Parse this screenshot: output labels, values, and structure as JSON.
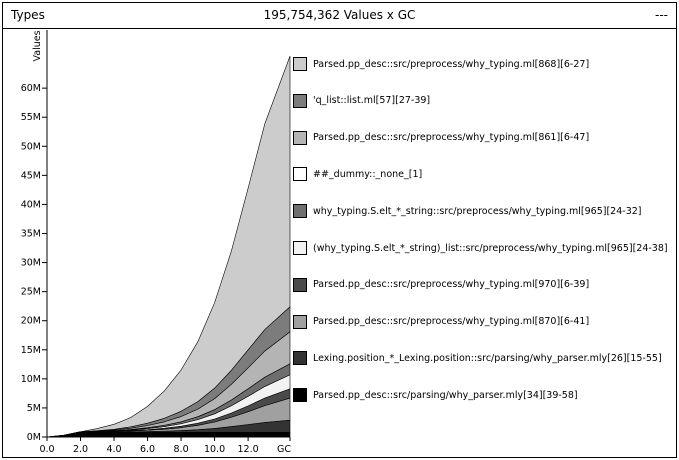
{
  "header": {
    "left": "Types",
    "center": "195,754,362 Values x GC",
    "right": "---"
  },
  "chart_data": {
    "type": "area",
    "stacked": true,
    "xlabel": "GC",
    "ylabel": "Values",
    "xlim": [
      0,
      14.5
    ],
    "ylim": [
      0,
      70000000
    ],
    "x_ticks": [
      "0.0",
      "2.0",
      "4.0",
      "6.0",
      "8.0",
      "10.0",
      "12.0",
      "GC"
    ],
    "y_ticks": [
      "0M",
      "5M",
      "10M",
      "15M",
      "20M",
      "25M",
      "30M",
      "35M",
      "40M",
      "45M",
      "50M",
      "55M",
      "60M"
    ],
    "y_tick_values": [
      0,
      5000000,
      10000000,
      15000000,
      20000000,
      25000000,
      30000000,
      35000000,
      40000000,
      45000000,
      50000000,
      55000000,
      60000000
    ],
    "x": [
      0,
      1,
      2,
      3,
      4,
      5,
      6,
      7,
      8,
      9,
      10,
      11,
      12,
      13,
      14.5
    ],
    "series": [
      {
        "name": "Parsed.pp_desc::src/parsing/why_parser.mly[34][39-58]",
        "color": "#000000",
        "values": [
          0,
          300000,
          800000,
          800000,
          800000,
          800000,
          800000,
          800000,
          800000,
          800000,
          800000,
          800000,
          800000,
          800000,
          800000
        ]
      },
      {
        "name": "Lexing.position_*_Lexing.position::src/parsing/why_parser.mly[26][15-55]",
        "color": "#333333",
        "values": [
          0,
          0,
          0,
          30000,
          50000,
          90000,
          140000,
          210000,
          310000,
          460000,
          680000,
          1000000,
          1350000,
          1700000,
          2100000
        ]
      },
      {
        "name": "Parsed.pp_desc::src/preprocess/why_typing.ml[870][6-41]",
        "color": "#a0a0a0",
        "values": [
          0,
          0,
          100000,
          50000,
          80000,
          140000,
          220000,
          330000,
          500000,
          750000,
          1100000,
          1600000,
          2200000,
          2900000,
          3800000
        ]
      },
      {
        "name": "Parsed.pp_desc::src/preprocess/why_typing.ml[970][6-39]",
        "color": "#4a4a4a",
        "values": [
          0,
          0,
          0,
          20000,
          40000,
          70000,
          110000,
          170000,
          250000,
          360000,
          520000,
          730000,
          1000000,
          1300000,
          1600000
        ]
      },
      {
        "name": "(why_typing.S.elt_*_string)_list::src/preprocess/why_typing.ml[965][24-38]",
        "color": "#f2f2f2",
        "values": [
          0,
          0,
          0,
          30000,
          60000,
          110000,
          180000,
          280000,
          420000,
          620000,
          890000,
          1250000,
          1650000,
          2000000,
          2400000
        ]
      },
      {
        "name": "why_typing.S.elt_*_string::src/preprocess/why_typing.ml[965][24-32]",
        "color": "#6e6e6e",
        "values": [
          0,
          0,
          0,
          30000,
          50000,
          90000,
          150000,
          230000,
          340000,
          500000,
          710000,
          980000,
          1300000,
          1600000,
          1900000
        ]
      },
      {
        "name": "##_dummy::_none_[1]",
        "color": "#ffffff",
        "values": [
          0,
          0,
          0,
          0,
          0,
          0,
          0,
          0,
          0,
          0,
          0,
          0,
          0,
          0,
          0
        ]
      },
      {
        "name": "Parsed.pp_desc::src/preprocess/why_typing.ml[861][6-47]",
        "color": "#b4b4b4",
        "values": [
          0,
          0,
          0,
          60000,
          120000,
          220000,
          380000,
          600000,
          900000,
          1300000,
          1900000,
          2700000,
          3600000,
          4500000,
          5500000
        ]
      },
      {
        "name": "'q_list::list.ml[57][27-39]",
        "color": "#7c7c7c",
        "values": [
          0,
          0,
          0,
          70000,
          130000,
          230000,
          390000,
          600000,
          900000,
          1300000,
          1800000,
          2400000,
          3100000,
          3700000,
          4300000
        ]
      },
      {
        "name": "Parsed.pp_desc::src/preprocess/why_typing.ml[868][6-27]",
        "color": "#cccccc",
        "values": [
          0,
          0,
          0,
          360000,
          850000,
          1600000,
          2900000,
          4700000,
          7100000,
          10300000,
          14700000,
          20500000,
          27800000,
          35400000,
          43100000
        ]
      }
    ],
    "legend_order": [
      9,
      8,
      7,
      6,
      5,
      4,
      3,
      2,
      1,
      0
    ]
  }
}
